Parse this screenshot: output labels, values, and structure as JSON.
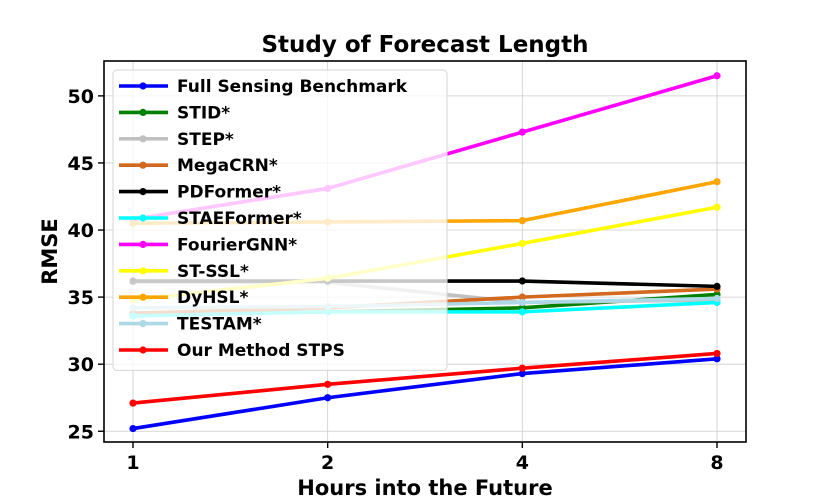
{
  "chart_data": {
    "type": "line",
    "title": "Study of Forecast Length",
    "xlabel": "Hours into the Future",
    "ylabel": "RMSE",
    "x": [
      1,
      2,
      4,
      8
    ],
    "x_tick_labels": [
      "1",
      "2",
      "4",
      "8"
    ],
    "y_ticks": [
      25,
      30,
      35,
      40,
      45,
      50
    ],
    "ylim": [
      24.2,
      52.6
    ],
    "grid": true,
    "legend_position": "upper-left",
    "series": [
      {
        "name": "Full Sensing Benchmark",
        "color": "#0000ff",
        "values": [
          25.2,
          27.5,
          29.3,
          30.4
        ]
      },
      {
        "name": "STID*",
        "color": "#008000",
        "values": [
          33.7,
          33.9,
          34.2,
          35.2
        ]
      },
      {
        "name": "STEP*",
        "color": "#c0c0c0",
        "values": [
          36.1,
          36.1,
          34.6,
          34.8
        ]
      },
      {
        "name": "MegaCRN*",
        "color": "#d2691e",
        "values": [
          33.8,
          34.2,
          35.0,
          35.6
        ]
      },
      {
        "name": "PDFormer*",
        "color": "#000000",
        "values": [
          36.2,
          36.2,
          36.2,
          35.8
        ]
      },
      {
        "name": "STAEFormer*",
        "color": "#00ffff",
        "values": [
          33.6,
          33.9,
          33.9,
          34.6
        ]
      },
      {
        "name": "FourierGNN*",
        "color": "#ff00ff",
        "values": [
          40.8,
          43.1,
          47.3,
          51.5
        ]
      },
      {
        "name": "ST-SSL*",
        "color": "#ffff00",
        "values": [
          34.8,
          36.4,
          39.0,
          41.7
        ]
      },
      {
        "name": "DyHSL*",
        "color": "#ffa500",
        "values": [
          40.5,
          40.6,
          40.7,
          43.6
        ]
      },
      {
        "name": "TESTAM*",
        "color": "#add8e6",
        "values": [
          34.2,
          34.3,
          34.6,
          34.9
        ]
      },
      {
        "name": "Our Method STPS",
        "color": "#ff0000",
        "values": [
          27.1,
          28.5,
          29.7,
          30.8
        ]
      }
    ]
  }
}
